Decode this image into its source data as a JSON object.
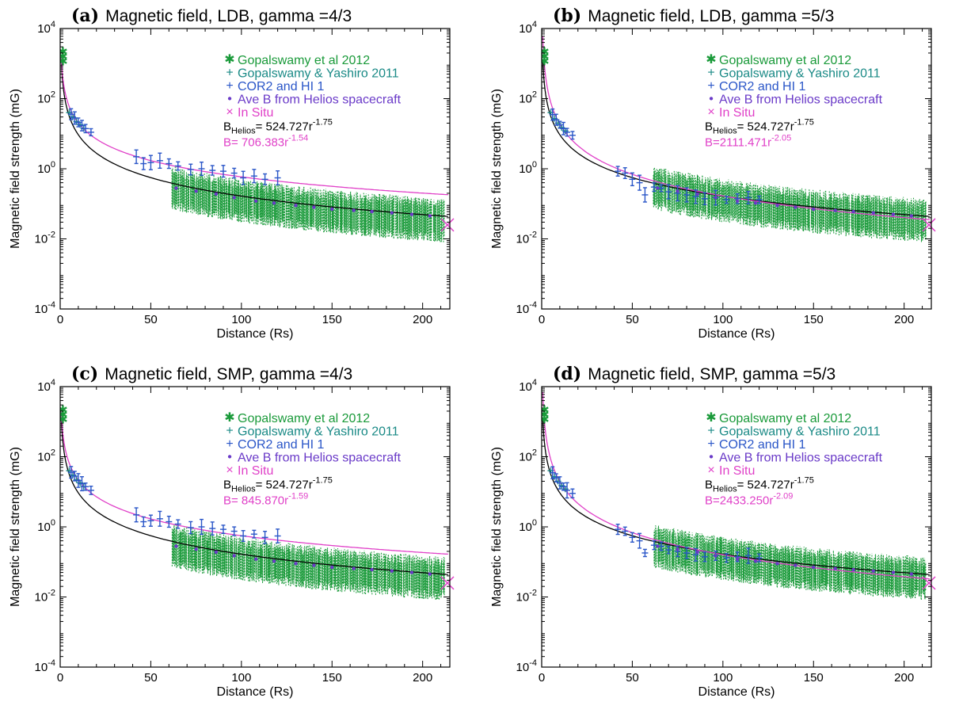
{
  "chart_data": [
    {
      "type": "scatter",
      "panel_tag": "(a)",
      "title": "Magnetic field, LDB, gamma =4/3",
      "xlabel": "Distance (Rs)",
      "ylabel": "Magnetic field strength (mG)",
      "xlim": [
        0,
        215
      ],
      "ylim_log10": [
        -4,
        4
      ],
      "x_ticks": [
        "0",
        "50",
        "100",
        "150",
        "200"
      ],
      "y_ticks": [
        "10",
        "10",
        "10",
        "10",
        "10"
      ],
      "y_tick_exps": [
        "-4",
        "-2",
        "0",
        "2",
        "4"
      ],
      "legend": {
        "position": "top-right",
        "entries": [
          {
            "symbol": "✱",
            "label": "Gopalswamy et al 2012",
            "color": "#1a9a3a"
          },
          {
            "symbol": "+",
            "label": "Gopalswamy & Yashiro 2011",
            "color": "#1a8a86"
          },
          {
            "symbol": "+",
            "label": "COR2 and HI 1",
            "color": "#2a56c8"
          },
          {
            "symbol": "•",
            "label": "Ave B from Helios spacecraft",
            "color": "#6a3ac8"
          },
          {
            "symbol": "×",
            "label": "In Situ",
            "color": "#e040c8"
          }
        ]
      },
      "fit_helios": {
        "text": "B",
        "sub": "Helios",
        "eq": "= 524.727r",
        "exp": "-1.75",
        "a": 524.727,
        "p": -1.75,
        "color": "#000000"
      },
      "fit_event": {
        "text": "B= 706.383r",
        "exp": "-1.54",
        "a": 706.383,
        "p": -1.54,
        "color": "#e040c8"
      },
      "gopal2012": [
        {
          "x": 1.5,
          "y": 1500
        }
      ],
      "gy2011": [
        {
          "x": 5,
          "y": 40
        },
        {
          "x": 7,
          "y": 30
        },
        {
          "x": 9,
          "y": 22
        },
        {
          "x": 11,
          "y": 18
        },
        {
          "x": 13,
          "y": 14
        }
      ],
      "cor2": [
        {
          "x": 6,
          "y": 36
        },
        {
          "x": 8,
          "y": 28
        },
        {
          "x": 10,
          "y": 21
        },
        {
          "x": 12,
          "y": 17
        },
        {
          "x": 14,
          "y": 14
        },
        {
          "x": 17,
          "y": 11
        },
        {
          "x": 42,
          "y": 2.2
        },
        {
          "x": 46,
          "y": 1.4
        },
        {
          "x": 50,
          "y": 1.5
        },
        {
          "x": 55,
          "y": 1.7
        },
        {
          "x": 60,
          "y": 1.4
        },
        {
          "x": 65,
          "y": 1.2
        },
        {
          "x": 72,
          "y": 0.95
        },
        {
          "x": 78,
          "y": 1.0
        },
        {
          "x": 84,
          "y": 0.9
        },
        {
          "x": 90,
          "y": 0.85
        },
        {
          "x": 96,
          "y": 0.75
        },
        {
          "x": 101,
          "y": 0.55
        },
        {
          "x": 107,
          "y": 0.62
        },
        {
          "x": 113,
          "y": 0.5
        },
        {
          "x": 120,
          "y": 0.55
        }
      ],
      "helios_ave": [
        {
          "x": 64,
          "y": 0.28
        },
        {
          "x": 75,
          "y": 0.23
        },
        {
          "x": 86,
          "y": 0.19
        },
        {
          "x": 96,
          "y": 0.15
        },
        {
          "x": 108,
          "y": 0.12
        },
        {
          "x": 118,
          "y": 0.105
        },
        {
          "x": 130,
          "y": 0.09
        },
        {
          "x": 140,
          "y": 0.08
        },
        {
          "x": 150,
          "y": 0.07
        },
        {
          "x": 162,
          "y": 0.065
        },
        {
          "x": 172,
          "y": 0.06
        },
        {
          "x": 183,
          "y": 0.055
        },
        {
          "x": 194,
          "y": 0.05
        },
        {
          "x": 204,
          "y": 0.045
        }
      ],
      "in_situ": [
        {
          "x": 215,
          "y": 0.025
        }
      ]
    },
    {
      "type": "scatter",
      "panel_tag": "(b)",
      "title": "Magnetic field, LDB, gamma =5/3",
      "xlabel": "Distance (Rs)",
      "ylabel": "Magnetic field strength (mG)",
      "xlim": [
        0,
        215
      ],
      "ylim_log10": [
        -4,
        4
      ],
      "x_ticks": [
        "0",
        "50",
        "100",
        "150",
        "200"
      ],
      "y_ticks": [
        "10",
        "10",
        "10",
        "10",
        "10"
      ],
      "y_tick_exps": [
        "-4",
        "-2",
        "0",
        "2",
        "4"
      ],
      "legend": {
        "position": "top-right",
        "entries": [
          {
            "symbol": "✱",
            "label": "Gopalswamy et al 2012",
            "color": "#1a9a3a"
          },
          {
            "symbol": "+",
            "label": "Gopalswamy & Yashiro 2011",
            "color": "#1a8a86"
          },
          {
            "symbol": "+",
            "label": "COR2 and HI 1",
            "color": "#2a56c8"
          },
          {
            "symbol": "•",
            "label": "Ave B from Helios spacecraft",
            "color": "#6a3ac8"
          },
          {
            "symbol": "×",
            "label": "In Situ",
            "color": "#e040c8"
          }
        ]
      },
      "fit_helios": {
        "text": "B",
        "sub": "Helios",
        "eq": "= 524.727r",
        "exp": "-1.75",
        "a": 524.727,
        "p": -1.75,
        "color": "#000000"
      },
      "fit_event": {
        "text": "B=2111.471r",
        "exp": "-2.05",
        "a": 2111.471,
        "p": -2.05,
        "color": "#e040c8"
      },
      "gopal2012": [
        {
          "x": 1.5,
          "y": 1500
        }
      ],
      "gy2011": [
        {
          "x": 5,
          "y": 40
        },
        {
          "x": 7,
          "y": 27
        },
        {
          "x": 9,
          "y": 20
        },
        {
          "x": 11,
          "y": 15
        },
        {
          "x": 13,
          "y": 12
        }
      ],
      "cor2": [
        {
          "x": 6,
          "y": 35
        },
        {
          "x": 8,
          "y": 25
        },
        {
          "x": 10,
          "y": 18
        },
        {
          "x": 12,
          "y": 14
        },
        {
          "x": 14,
          "y": 11
        },
        {
          "x": 17,
          "y": 9
        },
        {
          "x": 42,
          "y": 0.85
        },
        {
          "x": 46,
          "y": 0.75
        },
        {
          "x": 50,
          "y": 0.5
        },
        {
          "x": 54,
          "y": 0.4
        },
        {
          "x": 57,
          "y": 0.18
        },
        {
          "x": 62,
          "y": 0.3
        },
        {
          "x": 66,
          "y": 0.28
        },
        {
          "x": 70,
          "y": 0.22
        },
        {
          "x": 75,
          "y": 0.2
        },
        {
          "x": 80,
          "y": 0.18
        },
        {
          "x": 85,
          "y": 0.16
        },
        {
          "x": 90,
          "y": 0.14
        },
        {
          "x": 96,
          "y": 0.15
        },
        {
          "x": 102,
          "y": 0.13
        },
        {
          "x": 108,
          "y": 0.14
        },
        {
          "x": 114,
          "y": 0.15
        },
        {
          "x": 120,
          "y": 0.13
        }
      ],
      "helios_ave": [
        {
          "x": 64,
          "y": 0.28
        },
        {
          "x": 75,
          "y": 0.23
        },
        {
          "x": 86,
          "y": 0.19
        },
        {
          "x": 96,
          "y": 0.15
        },
        {
          "x": 108,
          "y": 0.12
        },
        {
          "x": 118,
          "y": 0.105
        },
        {
          "x": 130,
          "y": 0.09
        },
        {
          "x": 140,
          "y": 0.08
        },
        {
          "x": 150,
          "y": 0.07
        },
        {
          "x": 162,
          "y": 0.065
        },
        {
          "x": 172,
          "y": 0.06
        },
        {
          "x": 183,
          "y": 0.055
        },
        {
          "x": 194,
          "y": 0.05
        },
        {
          "x": 204,
          "y": 0.045
        }
      ],
      "in_situ": [
        {
          "x": 215,
          "y": 0.025
        }
      ]
    },
    {
      "type": "scatter",
      "panel_tag": "(c)",
      "title": "Magnetic field, SMP, gamma =4/3",
      "xlabel": "Distance (Rs)",
      "ylabel": "Magnetic field strength (mG)",
      "xlim": [
        0,
        215
      ],
      "ylim_log10": [
        -4,
        4
      ],
      "x_ticks": [
        "0",
        "50",
        "100",
        "150",
        "200"
      ],
      "y_ticks": [
        "10",
        "10",
        "10",
        "10",
        "10"
      ],
      "y_tick_exps": [
        "-4",
        "-2",
        "0",
        "2",
        "4"
      ],
      "legend": {
        "position": "top-right",
        "entries": [
          {
            "symbol": "✱",
            "label": "Gopalswamy et al 2012",
            "color": "#1a9a3a"
          },
          {
            "symbol": "+",
            "label": "Gopalswamy & Yashiro 2011",
            "color": "#1a8a86"
          },
          {
            "symbol": "+",
            "label": "COR2 and HI 1",
            "color": "#2a56c8"
          },
          {
            "symbol": "•",
            "label": "Ave B from Helios spacecraft",
            "color": "#6a3ac8"
          },
          {
            "symbol": "×",
            "label": "In Situ",
            "color": "#e040c8"
          }
        ]
      },
      "fit_helios": {
        "text": "B",
        "sub": "Helios",
        "eq": "= 524.727r",
        "exp": "-1.75",
        "a": 524.727,
        "p": -1.75,
        "color": "#000000"
      },
      "fit_event": {
        "text": "B= 845.870r",
        "exp": "-1.59",
        "a": 845.87,
        "p": -1.59,
        "color": "#e040c8"
      },
      "gopal2012": [
        {
          "x": 1.5,
          "y": 1500
        }
      ],
      "gy2011": [
        {
          "x": 5,
          "y": 40
        },
        {
          "x": 7,
          "y": 30
        },
        {
          "x": 9,
          "y": 22
        },
        {
          "x": 11,
          "y": 18
        },
        {
          "x": 13,
          "y": 14
        }
      ],
      "cor2": [
        {
          "x": 6,
          "y": 36
        },
        {
          "x": 8,
          "y": 28
        },
        {
          "x": 10,
          "y": 21
        },
        {
          "x": 12,
          "y": 17
        },
        {
          "x": 14,
          "y": 14
        },
        {
          "x": 17,
          "y": 11
        },
        {
          "x": 42,
          "y": 2.2
        },
        {
          "x": 46,
          "y": 1.4
        },
        {
          "x": 50,
          "y": 1.5
        },
        {
          "x": 55,
          "y": 1.7
        },
        {
          "x": 60,
          "y": 1.4
        },
        {
          "x": 65,
          "y": 1.2
        },
        {
          "x": 72,
          "y": 0.95
        },
        {
          "x": 78,
          "y": 1.0
        },
        {
          "x": 84,
          "y": 0.9
        },
        {
          "x": 90,
          "y": 0.85
        },
        {
          "x": 96,
          "y": 0.75
        },
        {
          "x": 101,
          "y": 0.55
        },
        {
          "x": 107,
          "y": 0.62
        },
        {
          "x": 113,
          "y": 0.5
        },
        {
          "x": 120,
          "y": 0.55
        }
      ],
      "helios_ave": [
        {
          "x": 64,
          "y": 0.28
        },
        {
          "x": 75,
          "y": 0.23
        },
        {
          "x": 86,
          "y": 0.19
        },
        {
          "x": 96,
          "y": 0.15
        },
        {
          "x": 108,
          "y": 0.12
        },
        {
          "x": 118,
          "y": 0.105
        },
        {
          "x": 130,
          "y": 0.09
        },
        {
          "x": 140,
          "y": 0.08
        },
        {
          "x": 150,
          "y": 0.07
        },
        {
          "x": 162,
          "y": 0.065
        },
        {
          "x": 172,
          "y": 0.06
        },
        {
          "x": 183,
          "y": 0.055
        },
        {
          "x": 194,
          "y": 0.05
        },
        {
          "x": 204,
          "y": 0.045
        }
      ],
      "in_situ": [
        {
          "x": 215,
          "y": 0.025
        }
      ]
    },
    {
      "type": "scatter",
      "panel_tag": "(d)",
      "title": "Magnetic field, SMP, gamma =5/3",
      "xlabel": "Distance (Rs)",
      "ylabel": "Magnetic field strength (mG)",
      "xlim": [
        0,
        215
      ],
      "ylim_log10": [
        -4,
        4
      ],
      "x_ticks": [
        "0",
        "50",
        "100",
        "150",
        "200"
      ],
      "y_ticks": [
        "10",
        "10",
        "10",
        "10",
        "10"
      ],
      "y_tick_exps": [
        "-4",
        "-2",
        "0",
        "2",
        "4"
      ],
      "legend": {
        "position": "top-right",
        "entries": [
          {
            "symbol": "✱",
            "label": "Gopalswamy et al 2012",
            "color": "#1a9a3a"
          },
          {
            "symbol": "+",
            "label": "Gopalswamy & Yashiro 2011",
            "color": "#1a8a86"
          },
          {
            "symbol": "+",
            "label": "COR2 and HI 1",
            "color": "#2a56c8"
          },
          {
            "symbol": "•",
            "label": "Ave B from Helios spacecraft",
            "color": "#6a3ac8"
          },
          {
            "symbol": "×",
            "label": "In Situ",
            "color": "#e040c8"
          }
        ]
      },
      "fit_helios": {
        "text": "B",
        "sub": "Helios",
        "eq": "= 524.727r",
        "exp": "-1.75",
        "a": 524.727,
        "p": -1.75,
        "color": "#000000"
      },
      "fit_event": {
        "text": "B=2433.250r",
        "exp": "-2.09",
        "a": 2433.25,
        "p": -2.09,
        "color": "#e040c8"
      },
      "gopal2012": [
        {
          "x": 1.5,
          "y": 1500
        }
      ],
      "gy2011": [
        {
          "x": 5,
          "y": 40
        },
        {
          "x": 7,
          "y": 27
        },
        {
          "x": 9,
          "y": 20
        },
        {
          "x": 11,
          "y": 15
        },
        {
          "x": 13,
          "y": 12
        }
      ],
      "cor2": [
        {
          "x": 6,
          "y": 35
        },
        {
          "x": 8,
          "y": 25
        },
        {
          "x": 10,
          "y": 18
        },
        {
          "x": 12,
          "y": 14
        },
        {
          "x": 14,
          "y": 11
        },
        {
          "x": 17,
          "y": 9
        },
        {
          "x": 42,
          "y": 0.85
        },
        {
          "x": 46,
          "y": 0.75
        },
        {
          "x": 50,
          "y": 0.5
        },
        {
          "x": 54,
          "y": 0.4
        },
        {
          "x": 57,
          "y": 0.18
        },
        {
          "x": 62,
          "y": 0.3
        },
        {
          "x": 66,
          "y": 0.28
        },
        {
          "x": 70,
          "y": 0.22
        },
        {
          "x": 75,
          "y": 0.2
        },
        {
          "x": 80,
          "y": 0.18
        },
        {
          "x": 85,
          "y": 0.16
        },
        {
          "x": 90,
          "y": 0.14
        },
        {
          "x": 96,
          "y": 0.15
        },
        {
          "x": 102,
          "y": 0.13
        },
        {
          "x": 108,
          "y": 0.14
        },
        {
          "x": 114,
          "y": 0.15
        },
        {
          "x": 120,
          "y": 0.13
        }
      ],
      "helios_ave": [
        {
          "x": 64,
          "y": 0.28
        },
        {
          "x": 75,
          "y": 0.23
        },
        {
          "x": 86,
          "y": 0.19
        },
        {
          "x": 96,
          "y": 0.15
        },
        {
          "x": 108,
          "y": 0.12
        },
        {
          "x": 118,
          "y": 0.105
        },
        {
          "x": 130,
          "y": 0.09
        },
        {
          "x": 140,
          "y": 0.08
        },
        {
          "x": 150,
          "y": 0.07
        },
        {
          "x": 162,
          "y": 0.065
        },
        {
          "x": 172,
          "y": 0.06
        },
        {
          "x": 183,
          "y": 0.055
        },
        {
          "x": 194,
          "y": 0.05
        },
        {
          "x": 204,
          "y": 0.045
        }
      ],
      "in_situ": [
        {
          "x": 215,
          "y": 0.025
        }
      ]
    }
  ]
}
